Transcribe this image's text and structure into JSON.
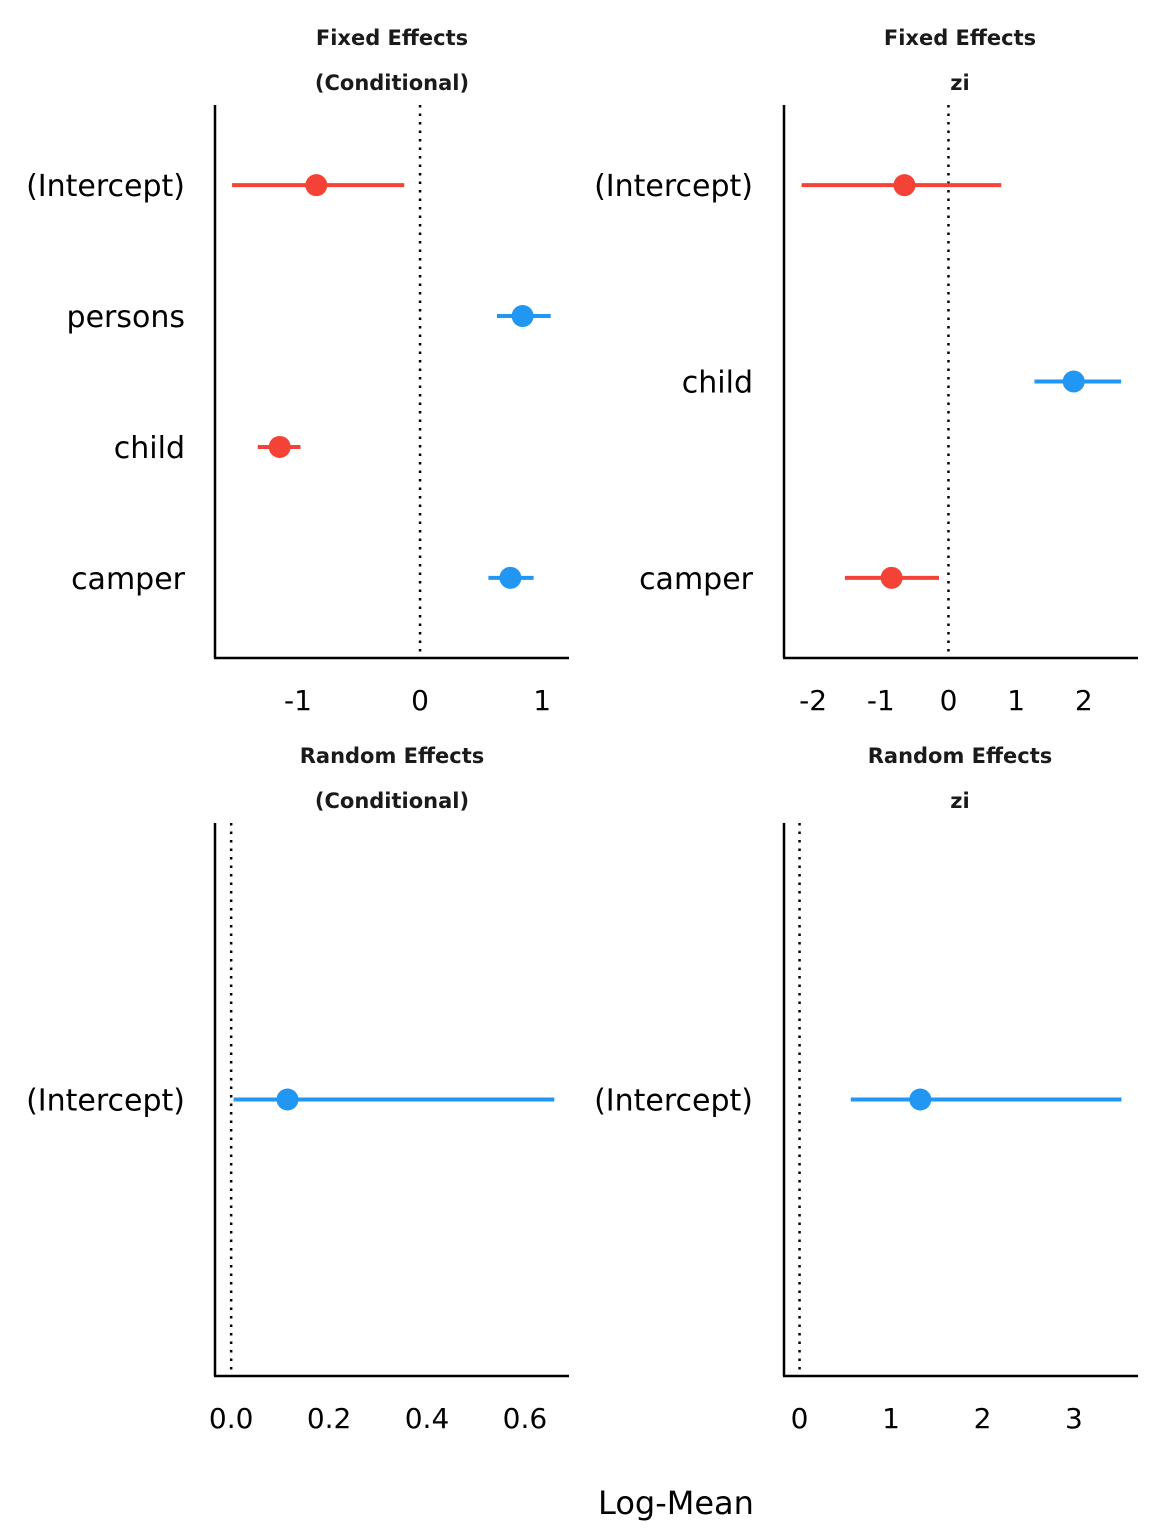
{
  "chart_data": {
    "type": "forest",
    "xlabel": "Log-Mean",
    "colors": {
      "positive": "#2196F3",
      "negative": "#F44336",
      "axis": "#000000"
    },
    "reference_line": 0,
    "panels": [
      {
        "title_line1": "Fixed Effects",
        "title_line2": "(Conditional)",
        "xlim": [
          -1.68,
          1.22
        ],
        "xticks": [
          {
            "v": -1,
            "label": "-1"
          },
          {
            "v": 0,
            "label": "0"
          },
          {
            "v": 1,
            "label": "1"
          }
        ],
        "terms": [
          {
            "label": "(Intercept)",
            "estimate": -0.85,
            "low": -1.54,
            "high": -0.13
          },
          {
            "label": "persons",
            "estimate": 0.84,
            "low": 0.63,
            "high": 1.07
          },
          {
            "label": "child",
            "estimate": -1.15,
            "low": -1.33,
            "high": -0.98
          },
          {
            "label": "camper",
            "estimate": 0.74,
            "low": 0.56,
            "high": 0.93
          }
        ]
      },
      {
        "title_line1": "Fixed Effects",
        "title_line2": "zi",
        "xlim": [
          -2.43,
          2.8
        ],
        "xticks": [
          {
            "v": -2,
            "label": "-2"
          },
          {
            "v": -1,
            "label": "-1"
          },
          {
            "v": 0,
            "label": "0"
          },
          {
            "v": 1,
            "label": "1"
          },
          {
            "v": 2,
            "label": "2"
          }
        ],
        "terms": [
          {
            "label": "(Intercept)",
            "estimate": -0.65,
            "low": -2.17,
            "high": 0.78
          },
          {
            "label": "child",
            "estimate": 1.85,
            "low": 1.27,
            "high": 2.55
          },
          {
            "label": "camper",
            "estimate": -0.84,
            "low": -1.53,
            "high": -0.14
          }
        ]
      },
      {
        "title_line1": "Random Effects",
        "title_line2": "(Conditional)",
        "xlim": [
          -0.033,
          0.69
        ],
        "xticks": [
          {
            "v": 0,
            "label": "0.0"
          },
          {
            "v": 0.2,
            "label": "0.2"
          },
          {
            "v": 0.4,
            "label": "0.4"
          },
          {
            "v": 0.6,
            "label": "0.6"
          }
        ],
        "terms": [
          {
            "label": "(Intercept)",
            "estimate": 0.115,
            "low": 0.005,
            "high": 0.66
          }
        ]
      },
      {
        "title_line1": "Random Effects",
        "title_line2": "zi",
        "xlim": [
          -0.17,
          3.7
        ],
        "xticks": [
          {
            "v": 0,
            "label": "0"
          },
          {
            "v": 1,
            "label": "1"
          },
          {
            "v": 2,
            "label": "2"
          },
          {
            "v": 3,
            "label": "3"
          }
        ],
        "terms": [
          {
            "label": "(Intercept)",
            "estimate": 1.32,
            "low": 0.56,
            "high": 3.52
          }
        ]
      }
    ]
  }
}
